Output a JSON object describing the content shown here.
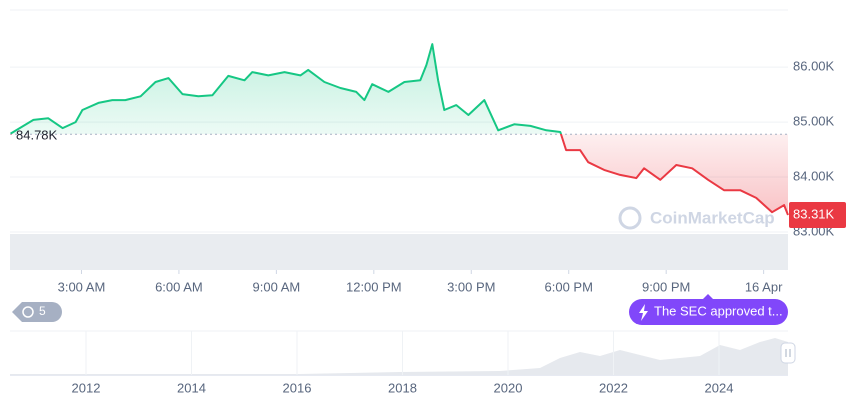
{
  "chart_data": {
    "type": "line",
    "x": [
      0.82,
      1.52,
      1.98,
      2.42,
      2.82,
      3.03,
      3.52,
      3.95,
      4.35,
      4.82,
      5.28,
      5.68,
      6.11,
      6.6,
      7.03,
      7.52,
      8.02,
      8.26,
      8.75,
      9.25,
      9.74,
      9.98,
      10.48,
      10.97,
      11.46,
      11.71,
      11.95,
      12.45,
      12.94,
      13.43,
      13.62,
      13.8,
      13.98,
      14.17,
      14.54,
      14.91,
      15.4,
      15.83,
      16.32,
      16.82,
      17.31,
      17.74,
      17.92,
      18.35,
      18.6,
      19.09,
      19.58,
      20.08,
      20.32,
      20.82,
      21.31,
      21.8,
      22.29,
      22.78,
      23.28,
      23.77,
      24.26,
      24.63,
      24.75
    ],
    "values": [
      84790,
      85040,
      85070,
      84890,
      85000,
      85220,
      85350,
      85400,
      85400,
      85470,
      85730,
      85800,
      85510,
      85470,
      85490,
      85840,
      85760,
      85910,
      85850,
      85910,
      85850,
      85950,
      85730,
      85620,
      85550,
      85400,
      85690,
      85550,
      85730,
      85760,
      86040,
      86420,
      85760,
      85220,
      85310,
      85130,
      85400,
      84850,
      84960,
      84930,
      84850,
      84820,
      84490,
      84490,
      84270,
      84130,
      84040,
      83980,
      84160,
      83950,
      84220,
      84160,
      83950,
      83760,
      83760,
      83620,
      83360,
      83490,
      83310
    ],
    "baseline": 84780,
    "baseline_label": "84.78K",
    "last_label": "83.31K",
    "up_color": "#16c784",
    "down_color": "#ea3943",
    "xlim": [
      0.8,
      24.75
    ],
    "xticks": [
      {
        "value": 3,
        "label": "3:00 AM"
      },
      {
        "value": 6,
        "label": "6:00 AM"
      },
      {
        "value": 9,
        "label": "9:00 AM"
      },
      {
        "value": 12,
        "label": "12:00 PM"
      },
      {
        "value": 15,
        "label": "3:00 PM"
      },
      {
        "value": 18,
        "label": "6:00 PM"
      },
      {
        "value": 21,
        "label": "9:00 PM"
      },
      {
        "value": 24,
        "label": "16 Apr"
      }
    ],
    "ylim": [
      83000,
      87040
    ],
    "yticks": [
      {
        "value": 83000,
        "label": "83.00K"
      },
      {
        "value": 84000,
        "label": "84.00K"
      },
      {
        "value": 85000,
        "label": "85.00K"
      },
      {
        "value": 86000,
        "label": "86.00K"
      }
    ],
    "grid": true,
    "watermark": "CoinMarketCap",
    "history_count": "5",
    "news": "The SEC approved t...",
    "navigator_labels": [
      "2012",
      "2014",
      "2016",
      "2018",
      "2020",
      "2022",
      "2024"
    ]
  }
}
